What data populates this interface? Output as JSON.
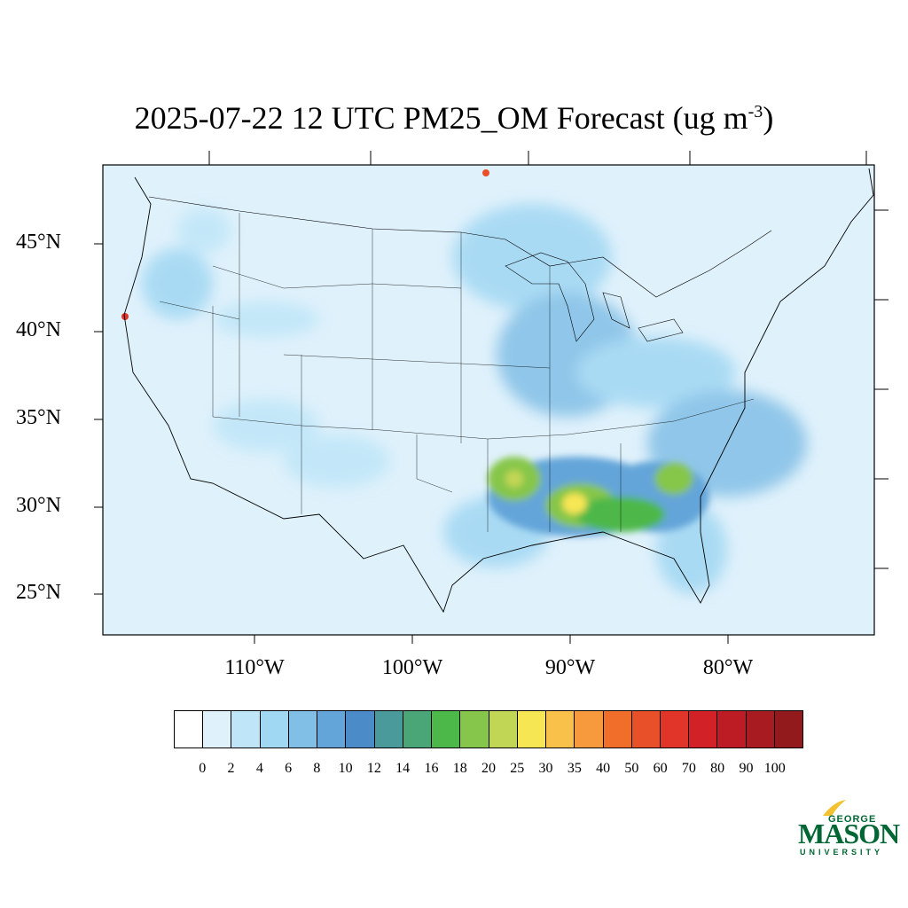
{
  "title": {
    "main": "2025-07-22 12 UTC PM25_OM Forecast (ug m",
    "superscript": "-3",
    "close": ")"
  },
  "map": {
    "background_color": "#dff1fb",
    "border_color": "#000000",
    "latitude_labels": [
      "45°N",
      "40°N",
      "35°N",
      "30°N",
      "25°N"
    ],
    "longitude_labels": [
      "110°W",
      "100°W",
      "90°W",
      "80°W"
    ]
  },
  "colorbar": {
    "colors": [
      "#ffffff",
      "#dff1fb",
      "#bfe6f8",
      "#a0d7f3",
      "#82bfe6",
      "#64a5d9",
      "#4a8bc8",
      "#4a9a9c",
      "#4aa676",
      "#4db84a",
      "#86c64a",
      "#c2d656",
      "#f7e654",
      "#f9c14a",
      "#f79a3d",
      "#f06d2a",
      "#e8502a",
      "#e03528",
      "#d32128",
      "#bd1c25",
      "#a81b21",
      "#921a1d"
    ],
    "labels": [
      "0",
      "2",
      "4",
      "6",
      "8",
      "10",
      "12",
      "14",
      "16",
      "18",
      "20",
      "25",
      "30",
      "35",
      "40",
      "50",
      "60",
      "70",
      "80",
      "90",
      "100"
    ]
  },
  "logo": {
    "line1": "GEORGE",
    "line2": "MASON",
    "line3": "UNIVERSITY",
    "color": "#006633",
    "accent": "#f2c230"
  }
}
